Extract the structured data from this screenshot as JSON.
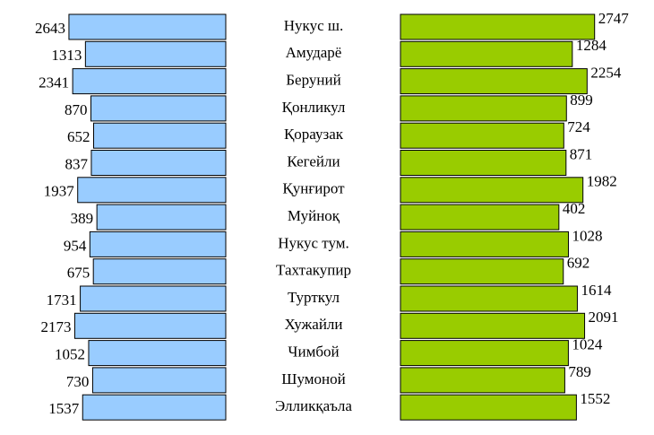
{
  "chart_data": {
    "type": "butterfly-bar",
    "categories": [
      "Нукус ш.",
      "Амударё",
      "Беруний",
      "Қонликул",
      "Қораузак",
      "Кегейли",
      "Қунғирот",
      "Муйноқ",
      "Нукус тум.",
      "Тахтакупир",
      "Турткул",
      "Хужайли",
      "Чимбой",
      "Шумоной",
      "Элликқаъла"
    ],
    "series": [
      {
        "color": "#99ccff",
        "values": [
          2643,
          1313,
          2341,
          870,
          652,
          837,
          1937,
          389,
          954,
          675,
          1731,
          2173,
          1052,
          730,
          1537
        ]
      },
      {
        "color": "#99cc00",
        "values": [
          2747,
          1284,
          2254,
          899,
          724,
          871,
          1982,
          402,
          1028,
          692,
          1614,
          2091,
          1024,
          789,
          1552
        ]
      }
    ],
    "xlim": [
      -10000,
      3000
    ]
  }
}
